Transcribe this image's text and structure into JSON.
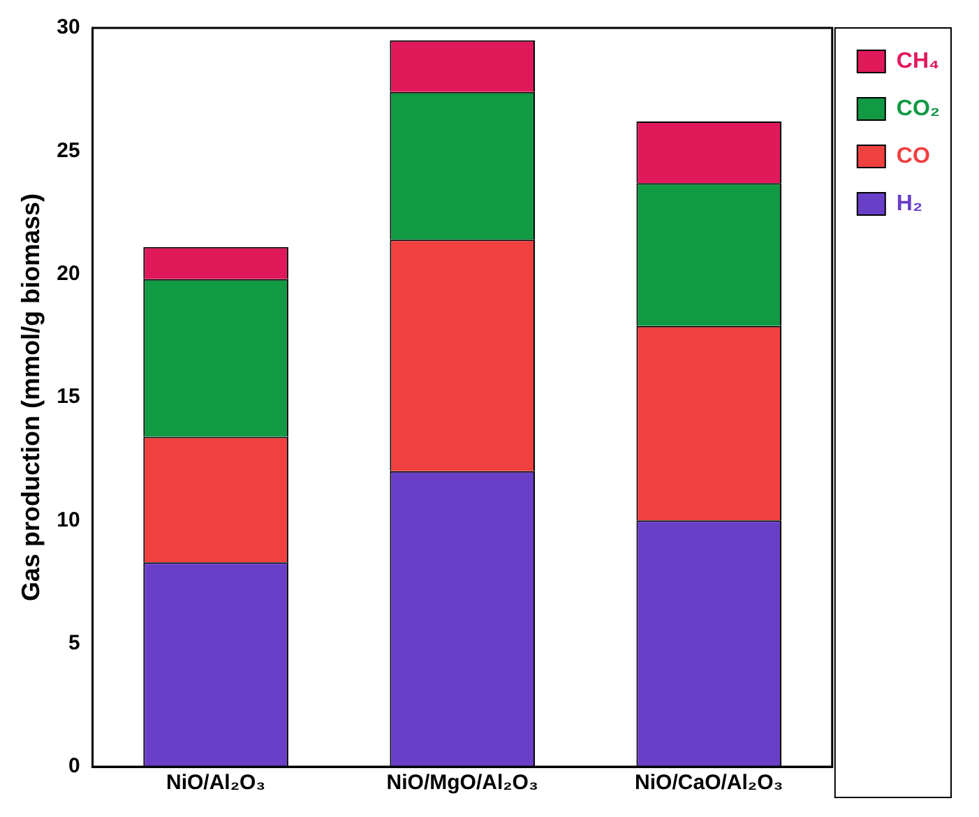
{
  "chart_data": {
    "type": "bar",
    "stacked": true,
    "ylabel": "Gas production (mmol/g biomass)",
    "categories": [
      "NiO/Al₂O₃",
      "NiO/MgO/Al₂O₃",
      "NiO/CaO/Al₂O₃"
    ],
    "series": [
      {
        "name": "H₂",
        "color": "#6a3fc8",
        "values": [
          8.3,
          12.0,
          10.0
        ]
      },
      {
        "name": "CO",
        "color": "#f04040",
        "values": [
          5.1,
          9.4,
          7.9
        ]
      },
      {
        "name": "CO₂",
        "color": "#119944",
        "values": [
          6.4,
          6.0,
          5.8
        ]
      },
      {
        "name": "CH₄",
        "color": "#e0195a",
        "values": [
          1.3,
          2.1,
          2.5
        ]
      }
    ],
    "ylim": [
      0,
      30
    ],
    "yticks": [
      0,
      5,
      10,
      15,
      20,
      25,
      30
    ],
    "grid": false,
    "legend": "top right"
  }
}
